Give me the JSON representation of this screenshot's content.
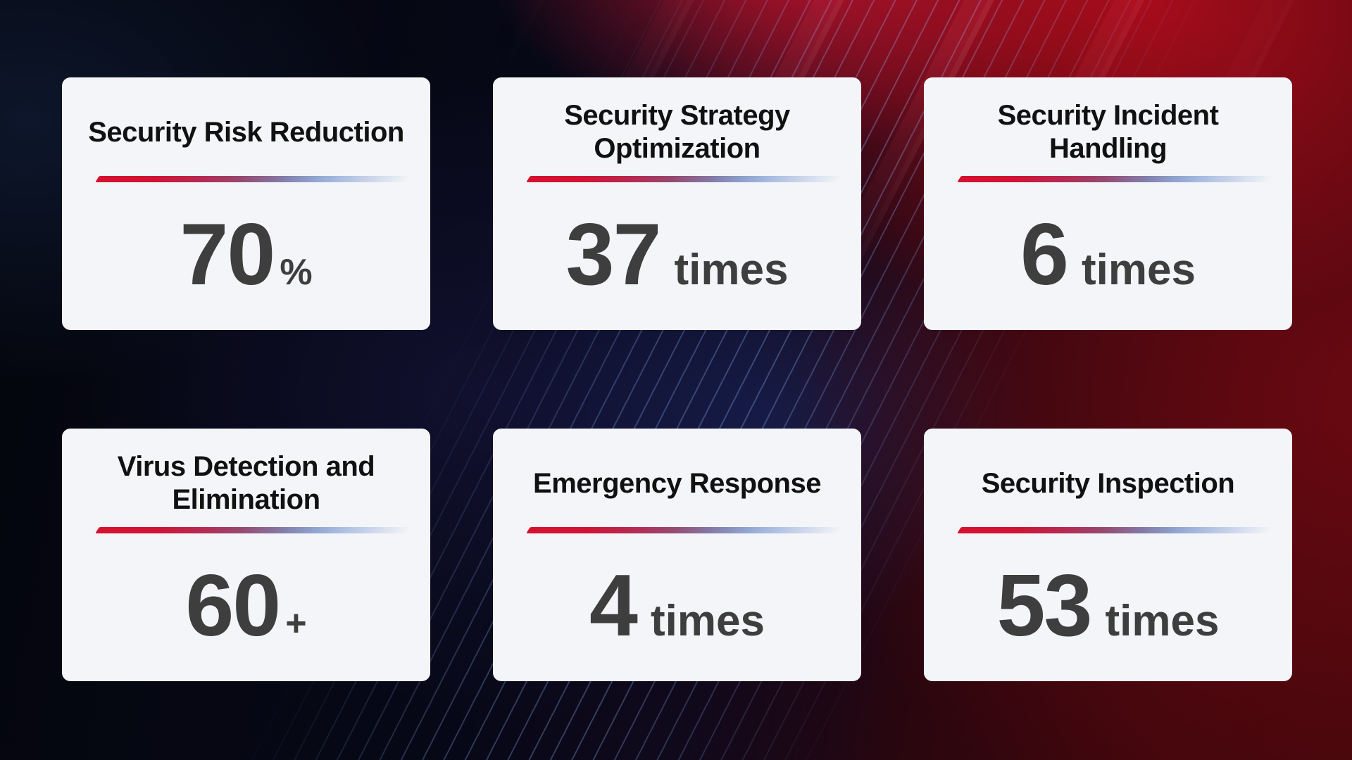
{
  "page": {
    "description": "Dark red and navy gradient slide with six light KPI stat cards in a 2x3 grid, each with a title, a red-to-blue gradient divider and a large statistic"
  },
  "cards": [
    {
      "title": "Security Risk Reduction",
      "value": "70",
      "unit": "%"
    },
    {
      "title": "Security Strategy Optimization",
      "value": "37",
      "unit": "times"
    },
    {
      "title": "Security Incident Handling",
      "value": "6",
      "unit": "times"
    },
    {
      "title": "Virus Detection and Elimination",
      "value": "60",
      "unit": "+"
    },
    {
      "title": "Emergency Response",
      "value": "4",
      "unit": "times"
    },
    {
      "title": "Security Inspection",
      "value": "53",
      "unit": "times"
    }
  ],
  "colors": {
    "card_background": "#f4f5f8",
    "title_text": "#111111",
    "value_text": "#3e3e3e",
    "divider_gradient_start": "#d6112f",
    "divider_gradient_mid": "#837ba8",
    "divider_gradient_end": "#ccd6eb",
    "background_red_accent": "#b00d1c",
    "background_navy_accent": "#14122e",
    "stripe_line_blue": "#96b9ff"
  },
  "chart_data": {
    "type": "table",
    "categories": [
      "Security Risk Reduction",
      "Security Strategy Optimization",
      "Security Incident Handling",
      "Virus Detection and Elimination",
      "Emergency Response",
      "Security Inspection"
    ],
    "values": [
      70,
      37,
      6,
      60,
      4,
      53
    ],
    "units": [
      "%",
      "times",
      "times",
      "+",
      "times",
      "times"
    ],
    "value_labels": [
      "70%",
      "37 times",
      "6 times",
      "60+",
      "4 times",
      "53 times"
    ],
    "layout": "6 KPI stat cards, 2 rows x 3 columns, on dark navy-to-red diagonal gradient background with thin diagonal light stripes"
  }
}
